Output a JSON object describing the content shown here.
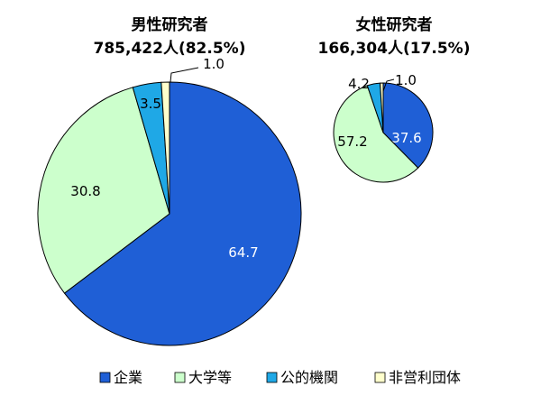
{
  "chart_data": [
    {
      "type": "pie",
      "title": "男性研究者",
      "subtitle": "785,422人(82.5%)",
      "categories": [
        "企業",
        "大学等",
        "公的機関",
        "非営利団体"
      ],
      "values": [
        64.7,
        30.8,
        3.5,
        1.0
      ],
      "labels": [
        "64.7",
        "30.8",
        "3.5",
        "1.0"
      ]
    },
    {
      "type": "pie",
      "title": "女性研究者",
      "subtitle": "166,304人(17.5%)",
      "categories": [
        "企業",
        "大学等",
        "公的機関",
        "非営利団体"
      ],
      "values": [
        37.6,
        57.2,
        4.2,
        1.0
      ],
      "labels": [
        "37.6",
        "57.2",
        "4.2",
        "1.0"
      ]
    }
  ],
  "legend": {
    "position": "bottom",
    "items": [
      {
        "label": "企業",
        "color": "#1f5fd6"
      },
      {
        "label": "大学等",
        "color": "#ccffcc"
      },
      {
        "label": "公的機関",
        "color": "#1fa8e6"
      },
      {
        "label": "非営利団体",
        "color": "#ffffcc"
      }
    ]
  }
}
